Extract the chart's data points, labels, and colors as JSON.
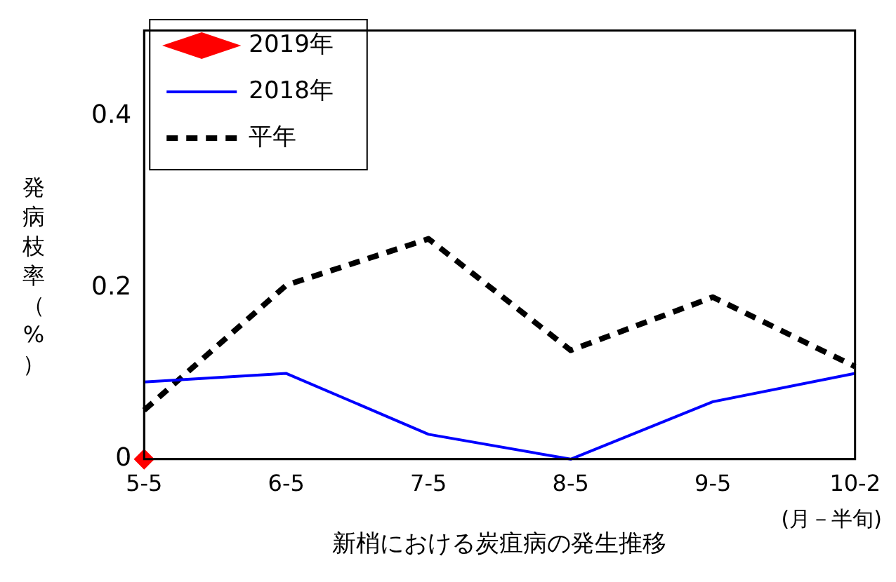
{
  "chart_data": {
    "type": "line",
    "xlabel": "新梢における炭疽病の発生推移",
    "ylabel": "発病枝率（%）",
    "annotations": [
      "(月－半旬)"
    ],
    "categories": [
      "5-5",
      "6-5",
      "7-5",
      "8-5",
      "9-5",
      "10-2"
    ],
    "series": [
      {
        "name": "2019年",
        "color": "#ff0000",
        "values": [
          0,
          null,
          null,
          null,
          null,
          null
        ],
        "marker": "diamond",
        "line_style": "solid"
      },
      {
        "name": "2018年",
        "color": "#0000ff",
        "values": [
          0.09,
          0.1,
          0.029,
          0,
          0.067,
          0.1
        ],
        "marker": "none",
        "line_style": "solid"
      },
      {
        "name": "平年",
        "color": "#000000",
        "values": [
          0.057,
          0.203,
          0.257,
          0.127,
          0.189,
          0.108
        ],
        "marker": "none",
        "line_style": "dashed"
      }
    ],
    "ylim": [
      0,
      0.5
    ],
    "yticks": [
      0,
      0.2,
      0.4
    ],
    "grid": false,
    "legend": "top left"
  }
}
